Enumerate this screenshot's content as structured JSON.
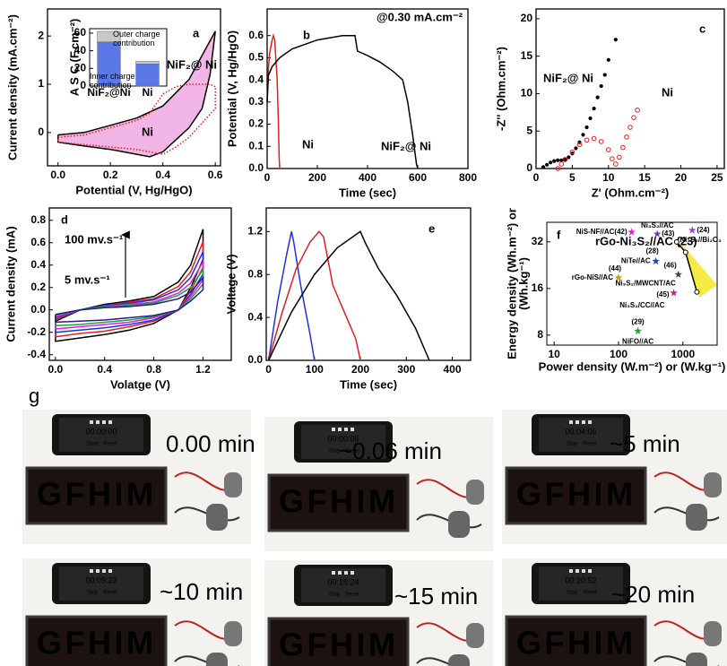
{
  "chart_data": [
    {
      "type": "line",
      "label": "a",
      "x_label": "Potential (V, Hg/HgO)",
      "y_label": "Current density (mA.cm⁻²)",
      "xlim": [
        -0.04,
        0.62
      ],
      "ylim": [
        -0.69,
        2.56
      ],
      "xticks": [
        {
          "value": 0,
          "label": "0.0"
        },
        0.2,
        0.4,
        0.6
      ],
      "yticks": [
        0,
        1,
        2
      ],
      "series": [
        {
          "name": "NiF₂@ Ni",
          "color": "#000000",
          "fill": "#f2b6e6",
          "x": [
            0.0,
            0.1,
            0.2,
            0.3,
            0.4,
            0.5,
            0.55,
            0.6,
            0.58,
            0.55,
            0.5,
            0.45,
            0.4,
            0.35,
            0.3,
            0.2,
            0.1,
            0.0,
            0.0
          ],
          "values": [
            -0.05,
            0.0,
            0.15,
            0.3,
            0.55,
            1.1,
            1.6,
            2.1,
            1.2,
            0.5,
            0.1,
            -0.15,
            -0.4,
            -0.5,
            -0.45,
            -0.35,
            -0.28,
            -0.2,
            -0.05
          ]
        },
        {
          "name": "Ni",
          "color": "#e02020",
          "dash": "dotted",
          "x": [
            0.0,
            0.1,
            0.2,
            0.3,
            0.35,
            0.4,
            0.45,
            0.5,
            0.58,
            0.6,
            0.6,
            0.55,
            0.5,
            0.45,
            0.4,
            0.35,
            0.3,
            0.2,
            0.1,
            0.0,
            0.0
          ],
          "values": [
            -0.1,
            -0.05,
            0.1,
            0.25,
            0.4,
            0.8,
            0.95,
            1.0,
            1.0,
            0.95,
            0.5,
            0.2,
            -0.1,
            -0.3,
            -0.45,
            -0.4,
            -0.35,
            -0.3,
            -0.25,
            -0.2,
            -0.1
          ]
        }
      ]
    },
    {
      "type": "bar",
      "stacked": true,
      "y_label": "A S C (F.cm⁻²)",
      "categories": [
        "NiF₂@Ni",
        "Ni"
      ],
      "ylim": [
        0,
        65
      ],
      "yticks": [
        0,
        20,
        40,
        60
      ],
      "series": [
        {
          "name": "Inner charge contribution",
          "color": "#5b78e8",
          "values": [
            50,
            25
          ]
        },
        {
          "name": "Outer charge contribution",
          "color": "#c8c8c8",
          "values": [
            12,
            3
          ]
        }
      ]
    },
    {
      "type": "line",
      "label": "b",
      "x_label": "Time (sec)",
      "y_label": "Potential (V, Hg/HgO)",
      "annotations": [
        "@0.30 mA.cm⁻²"
      ],
      "xlim": [
        0,
        800
      ],
      "ylim": [
        0,
        0.72
      ],
      "xticks": [
        0,
        200,
        400,
        600,
        800
      ],
      "yticks": [
        {
          "value": 0,
          "label": "0.0"
        },
        0.1,
        0.2,
        0.3,
        0.4,
        0.5,
        0.6
      ],
      "series": [
        {
          "name": "Ni",
          "color": "#e02020",
          "x": [
            0,
            5,
            10,
            20,
            25,
            30,
            40,
            45,
            48,
            50
          ],
          "values": [
            0.3,
            0.45,
            0.52,
            0.58,
            0.6,
            0.58,
            0.4,
            0.2,
            0.05,
            0.0
          ]
        },
        {
          "name": "NiF₂@ Ni",
          "color": "#000000",
          "x": [
            0,
            5,
            20,
            50,
            100,
            200,
            300,
            350,
            360,
            400,
            450,
            500,
            540,
            560,
            580,
            595,
            600
          ],
          "values": [
            0.3,
            0.42,
            0.46,
            0.5,
            0.54,
            0.58,
            0.6,
            0.6,
            0.53,
            0.51,
            0.48,
            0.44,
            0.4,
            0.3,
            0.15,
            0.02,
            0.0
          ]
        }
      ]
    },
    {
      "type": "scatter",
      "label": "c",
      "x_label": "Z' (Ohm.cm⁻²)",
      "y_label": "-Z'' (Ohm.cm⁻²)",
      "xlim": [
        0,
        26
      ],
      "ylim": [
        0,
        21.3
      ],
      "xticks": [
        0,
        5,
        10,
        15,
        20,
        25
      ],
      "yticks": [
        0,
        5,
        10,
        15,
        20
      ],
      "series": [
        {
          "name": "NiF₂@ Ni",
          "color": "#000000",
          "marker": "dot",
          "x": [
            1,
            1.5,
            2,
            2.5,
            3,
            3.5,
            4,
            4.5,
            5,
            5.5,
            6,
            6.5,
            7,
            7.5,
            8,
            8.5,
            9,
            9.5,
            10,
            11
          ],
          "values": [
            0.2,
            0.5,
            0.8,
            1,
            1.1,
            1.1,
            1.2,
            1.5,
            2,
            2.7,
            3.5,
            4.5,
            5.5,
            6.7,
            8,
            9.5,
            11,
            12.5,
            14.5,
            17.2
          ]
        },
        {
          "name": "Ni",
          "color": "#e02020",
          "marker": "open",
          "x": [
            3,
            3.5,
            4,
            5,
            6,
            7,
            8,
            9,
            10,
            10.5,
            11,
            11.5,
            12,
            12.5,
            13,
            13.5,
            14
          ],
          "values": [
            0,
            0.6,
            1.2,
            2.2,
            3.2,
            3.8,
            4,
            3.6,
            2.5,
            1.3,
            0.6,
            1.5,
            2.8,
            4.2,
            5.5,
            6.8,
            7.8
          ]
        }
      ]
    },
    {
      "type": "line",
      "label": "d",
      "x_label": "Volatge (V)",
      "y_label": "Current density (mA)",
      "annotations": [
        "100 mv.s⁻¹",
        "5 mv.s⁻¹"
      ],
      "xlim": [
        -0.05,
        1.43
      ],
      "ylim": [
        -0.45,
        0.91
      ],
      "xticks": [
        {
          "value": 0,
          "label": "0.0"
        },
        0.4,
        0.8,
        1.2
      ],
      "yticks": [
        -0.4,
        -0.2,
        {
          "value": 0,
          "label": "0.0"
        },
        0.2,
        0.4,
        0.6,
        0.8
      ],
      "x": [
        0,
        0.2,
        0.4,
        0.6,
        0.8,
        1.0,
        1.1,
        1.2,
        1.2,
        1.1,
        1.0,
        0.8,
        0.6,
        0.4,
        0.2,
        0.0,
        0.0
      ],
      "series": [
        {
          "color": "#000000",
          "values": [
            -0.1,
            0.0,
            0.05,
            0.08,
            0.12,
            0.25,
            0.4,
            0.72,
            0.45,
            0.2,
            0.0,
            -0.12,
            -0.18,
            -0.22,
            -0.25,
            -0.28,
            -0.1
          ]
        },
        {
          "color": "#e02020",
          "values": [
            -0.085,
            0,
            0.04,
            0.07,
            0.1,
            0.21,
            0.34,
            0.61,
            0.38,
            0.17,
            0,
            -0.1,
            -0.15,
            -0.19,
            -0.21,
            -0.24,
            -0.085
          ]
        },
        {
          "color": "#2030e0",
          "values": [
            -0.07,
            0,
            0.04,
            0.06,
            0.09,
            0.18,
            0.29,
            0.52,
            0.32,
            0.14,
            0,
            -0.09,
            -0.13,
            -0.16,
            -0.18,
            -0.2,
            -0.07
          ]
        },
        {
          "color": "#e020e0",
          "values": [
            -0.06,
            0,
            0.03,
            0.05,
            0.07,
            0.15,
            0.24,
            0.43,
            0.27,
            0.12,
            0,
            -0.07,
            -0.11,
            -0.13,
            -0.15,
            -0.17,
            -0.06
          ]
        },
        {
          "color": "#20a040",
          "values": [
            -0.05,
            0,
            0.03,
            0.04,
            0.06,
            0.13,
            0.2,
            0.36,
            0.23,
            0.1,
            0,
            -0.06,
            -0.09,
            -0.11,
            -0.13,
            -0.14,
            -0.05
          ]
        },
        {
          "color": "#202080",
          "values": [
            -0.04,
            0,
            0.02,
            0.03,
            0.05,
            0.1,
            0.16,
            0.29,
            0.18,
            0.08,
            0,
            -0.05,
            -0.07,
            -0.09,
            -0.1,
            -0.11,
            -0.04
          ]
        }
      ]
    },
    {
      "type": "line",
      "label": "e",
      "x_label": "Time (sec)",
      "y_label": "Voltage (V)",
      "xlim": [
        -5,
        440
      ],
      "ylim": [
        0,
        1.42
      ],
      "xticks": [
        0,
        100,
        200,
        300,
        400
      ],
      "yticks": [
        {
          "value": 0,
          "label": "0.0"
        },
        0.4,
        0.8,
        1.2
      ],
      "series": [
        {
          "color": "#2030e0",
          "x": [
            0,
            20,
            40,
            50,
            55,
            70,
            90,
            100
          ],
          "values": [
            0,
            0.55,
            1.0,
            1.2,
            1.1,
            0.7,
            0.25,
            0
          ]
        },
        {
          "color": "#e02020",
          "x": [
            0,
            30,
            60,
            90,
            110,
            120,
            140,
            160,
            190,
            200
          ],
          "values": [
            0,
            0.45,
            0.85,
            1.1,
            1.2,
            1.15,
            0.7,
            0.5,
            0.2,
            0
          ]
        },
        {
          "color": "#000000",
          "x": [
            0,
            50,
            100,
            150,
            200,
            210,
            240,
            280,
            320,
            350
          ],
          "values": [
            0,
            0.45,
            0.8,
            1.05,
            1.2,
            1.1,
            0.85,
            0.6,
            0.3,
            0
          ]
        }
      ]
    },
    {
      "type": "scatter",
      "label": "f",
      "x_label": "Power density (W.m⁻²) or (W.kg⁻¹)",
      "y_label": [
        "Energy density (Wh.m⁻²) or",
        "(Wh.kg⁻¹)"
      ],
      "log_x": true,
      "log_y": true,
      "xlim": [
        7.7,
        3400
      ],
      "ylim": [
        6.9,
        42.8
      ],
      "xticks": [
        10,
        100,
        1000
      ],
      "yticks": [
        8,
        16,
        32
      ],
      "annotations": [
        "rGo-Ni₃S₂//AC (23)"
      ],
      "points": [
        {
          "label": "NiS-NF//AC(42)",
          "x": 160,
          "y": 37,
          "color": "#e020e0"
        },
        {
          "label": "Ni₃S₂//AC",
          "ref": "(43)",
          "x": 400,
          "y": 36,
          "color": "#8030c0"
        },
        {
          "label": "Ni₃S₂//Bi₂O₃",
          "ref": "(24)",
          "x": 1400,
          "y": 38,
          "color": "#a040d0"
        },
        {
          "label": "NiTe//AC",
          "ref": "(28)",
          "x": 380,
          "y": 24,
          "color": "#2040d0"
        },
        {
          "label": "rGo-NiS//AC",
          "ref": "(44)",
          "x": 100,
          "y": 18.8,
          "color": "#b8a020"
        },
        {
          "label": "Ni₃S₂/MWCNT/AC",
          "ref": "(46)",
          "x": 850,
          "y": 19.7,
          "color": "#404060"
        },
        {
          "label": "Ni₃S₂/CC//AC",
          "ref": "(45)",
          "x": 720,
          "y": 15,
          "color": "#c020a0"
        },
        {
          "label": "NiFO//AC",
          "ref": "(29)",
          "x": 200,
          "y": 8.5,
          "color": "#20a040"
        }
      ],
      "series": [
        {
          "color": "#000000",
          "x": [
            800,
            1100,
            1650
          ],
          "values": [
            32,
            27.4,
            15.2
          ]
        }
      ]
    }
  ],
  "photos": {
    "label": "g",
    "panels": [
      {
        "time": "0.00 min",
        "timer": "00:00:00",
        "buttons": [
          "Start",
          "Reset"
        ],
        "display": "GFHIM",
        "color": "#e0503a"
      },
      {
        "time": "~0.06 min",
        "timer": "00:00:06",
        "buttons": [
          "Stop",
          "Reset"
        ],
        "display": "GFHIM",
        "color": "#f05a48"
      },
      {
        "time": "~5 min",
        "timer": "00:04:06",
        "buttons": [
          "Stop",
          "Reset"
        ],
        "display": "GFHIM",
        "color": "#f05a48"
      },
      {
        "time": "~10 min",
        "timer": "00:09:23",
        "buttons": [
          "Stop",
          "Reset"
        ],
        "display": "GFHIM",
        "color": "#e8902a"
      },
      {
        "time": "~15 min",
        "timer": "00:15:24",
        "buttons": [
          "Stop",
          "Reset"
        ],
        "display": "GFHIM",
        "color": "#e8902a"
      },
      {
        "time": "~20 min",
        "timer": "00:20:52",
        "buttons": [
          "Stop",
          "Reset"
        ],
        "display": "GFHIM",
        "color": "#e8902a"
      }
    ]
  }
}
